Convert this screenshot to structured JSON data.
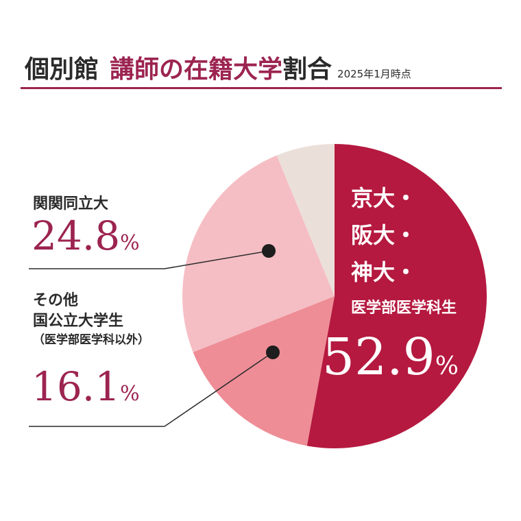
{
  "header": {
    "title_part1": "個別館",
    "title_part2": "講師の在籍大学",
    "title_part3": "割合",
    "date": "2025年1月時点"
  },
  "chart_data": {
    "type": "pie",
    "start_angle_deg": 0,
    "direction": "clockwise",
    "slices": [
      {
        "id": "kyoto",
        "label_lines": [
          "京大・",
          "阪大・",
          "神大・"
        ],
        "sublabel": "医学部医学科生",
        "value": 52.9,
        "value_text": "52.9",
        "unit": "%",
        "color": "#b5193f"
      },
      {
        "id": "other",
        "label_lines": [
          "その他",
          "国公立大学生"
        ],
        "sublabel": "（医学部医学科以外）",
        "value": 16.1,
        "value_text": "16.1",
        "unit": "%",
        "color": "#ee8d96"
      },
      {
        "id": "kankan",
        "label_lines": [
          "関関同立大"
        ],
        "sublabel": "",
        "value": 24.8,
        "value_text": "24.8",
        "unit": "%",
        "color": "#f5bec4"
      },
      {
        "id": "rest",
        "label_lines": [],
        "sublabel": "",
        "value": 6.2,
        "value_text": "",
        "unit": "",
        "color": "#ebdfda"
      }
    ]
  }
}
